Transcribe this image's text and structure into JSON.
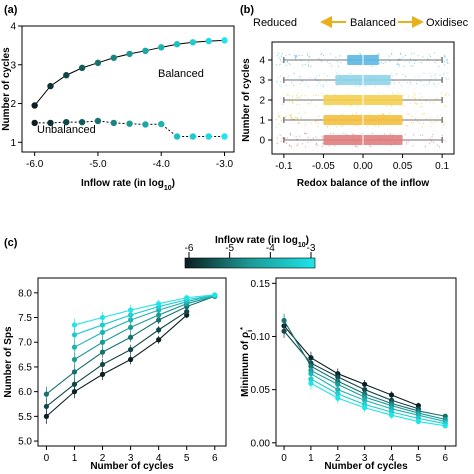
{
  "panel_labels": [
    "(a)",
    "(b)",
    "(c)"
  ],
  "colors": {
    "dark": "#0b1e22",
    "mid": "#1b9a96",
    "light": "#20e4e8",
    "arrow": "#e8b11c",
    "box_colors": [
      "#e07e7e",
      "#f5c040",
      "#f5cf50",
      "#8fd4ea",
      "#5bb8e2"
    ]
  },
  "chart_data": [
    {
      "type": "line",
      "panel": "(a)",
      "xlabel": "Inflow rate (in log10)",
      "ylabel": "Number of cycles",
      "xlim": [
        -6.2,
        -2.85
      ],
      "ylim": [
        0.75,
        4.0
      ],
      "xticks": [
        "-6.0",
        "-5.0",
        "-4.0",
        "-3.0"
      ],
      "yticks": [
        "1",
        "2",
        "3",
        "4"
      ],
      "series": [
        {
          "name": "Balanced",
          "x": [
            -6.0,
            -5.75,
            -5.5,
            -5.25,
            -5.0,
            -4.75,
            -4.5,
            -4.25,
            -4.0,
            -3.75,
            -3.5,
            -3.25,
            -3.0
          ],
          "values": [
            1.95,
            2.45,
            2.73,
            2.92,
            3.05,
            3.18,
            3.28,
            3.36,
            3.45,
            3.53,
            3.58,
            3.61,
            3.63
          ]
        },
        {
          "name": "Unbalanced",
          "x": [
            -6.0,
            -5.75,
            -5.5,
            -5.25,
            -5.0,
            -4.75,
            -4.5,
            -4.25,
            -4.0,
            -3.75,
            -3.5,
            -3.25,
            -3.0
          ],
          "values": [
            1.5,
            1.5,
            1.52,
            1.52,
            1.55,
            1.5,
            1.48,
            1.46,
            1.47,
            1.15,
            1.15,
            1.15,
            1.15
          ]
        }
      ],
      "annotations": [
        "Balanced",
        "Unbalanced"
      ]
    },
    {
      "type": "box",
      "panel": "(b)",
      "xlabel": "Redox balance of the inflow",
      "ylabel": "Number of cycles",
      "xlim": [
        -0.115,
        0.115
      ],
      "xticks": [
        "-0.1",
        "-0.05",
        "0.00",
        "0.05",
        "0.1"
      ],
      "categories": [
        "0",
        "1",
        "2",
        "3",
        "4"
      ],
      "boxes": [
        {
          "category": "0",
          "whisker_lo": -0.1,
          "q1": -0.05,
          "median": 0.0,
          "q3": 0.05,
          "whisker_hi": 0.1
        },
        {
          "category": "1",
          "whisker_lo": -0.1,
          "q1": -0.05,
          "median": 0.0,
          "q3": 0.05,
          "whisker_hi": 0.1
        },
        {
          "category": "2",
          "whisker_lo": -0.1,
          "q1": -0.05,
          "median": 0.0,
          "q3": 0.05,
          "whisker_hi": 0.1
        },
        {
          "category": "3",
          "whisker_lo": -0.1,
          "q1": -0.035,
          "median": 0.0,
          "q3": 0.035,
          "whisker_hi": 0.1
        },
        {
          "category": "4",
          "whisker_lo": -0.1,
          "q1": -0.02,
          "median": 0.0,
          "q3": 0.02,
          "whisker_hi": 0.1
        }
      ],
      "header": {
        "left": "Reduced",
        "center": "Balanced",
        "right": "Oxidisec"
      }
    },
    {
      "type": "line",
      "panel": "(c) left",
      "xlabel": "Number of cycles",
      "ylabel": "Number of Sps",
      "xlim": [
        -0.3,
        6.4
      ],
      "ylim": [
        4.9,
        8.3
      ],
      "xticks": [
        "0",
        "1",
        "2",
        "3",
        "4",
        "5",
        "6"
      ],
      "yticks": [
        "5.0",
        "5.5",
        "6.0",
        "6.5",
        "7.0",
        "7.5",
        "8.0"
      ],
      "series": [
        {
          "inflow_log10": -6.0,
          "x": [
            0,
            1,
            2,
            3,
            4,
            5
          ],
          "values": [
            5.5,
            6.0,
            6.35,
            6.65,
            7.05,
            7.55
          ]
        },
        {
          "inflow_log10": -5.5,
          "x": [
            0,
            1,
            2,
            3,
            4,
            5
          ],
          "values": [
            5.7,
            6.15,
            6.55,
            6.85,
            7.25,
            7.62
          ]
        },
        {
          "inflow_log10": -5.0,
          "x": [
            0,
            1,
            2,
            3,
            4,
            5,
            6
          ],
          "values": [
            5.95,
            6.4,
            6.8,
            7.1,
            7.45,
            7.72,
            7.93
          ]
        },
        {
          "inflow_log10": -4.5,
          "x": [
            1,
            2,
            3,
            4,
            5,
            6
          ],
          "values": [
            6.65,
            7.0,
            7.3,
            7.55,
            7.78,
            7.93
          ]
        },
        {
          "inflow_log10": -4.0,
          "x": [
            1,
            2,
            3,
            4,
            5,
            6
          ],
          "values": [
            6.9,
            7.2,
            7.45,
            7.65,
            7.82,
            7.95
          ]
        },
        {
          "inflow_log10": -3.5,
          "x": [
            1,
            2,
            3,
            4,
            5,
            6
          ],
          "values": [
            7.15,
            7.35,
            7.55,
            7.72,
            7.86,
            7.95
          ]
        },
        {
          "inflow_log10": -3.0,
          "x": [
            1,
            2,
            3,
            4,
            5,
            6
          ],
          "values": [
            7.35,
            7.5,
            7.65,
            7.78,
            7.9,
            7.96
          ]
        }
      ]
    },
    {
      "type": "line",
      "panel": "(c) right",
      "xlabel": "Number of cycles",
      "ylabel": "Minimum of ρi*",
      "xlim": [
        -0.3,
        6.4
      ],
      "ylim": [
        -0.003,
        0.155
      ],
      "xticks": [
        "0",
        "1",
        "2",
        "3",
        "4",
        "5",
        "6"
      ],
      "yticks": [
        "0.00",
        "0.05",
        "0.10",
        "0.15"
      ],
      "series": [
        {
          "inflow_log10": -6.0,
          "x": [
            0,
            1,
            2,
            3,
            4,
            5
          ],
          "values": [
            0.11,
            0.08,
            0.065,
            0.055,
            0.045,
            0.035
          ]
        },
        {
          "inflow_log10": -5.5,
          "x": [
            0,
            1,
            2,
            3,
            4,
            5
          ],
          "values": [
            0.105,
            0.075,
            0.062,
            0.05,
            0.04,
            0.032
          ]
        },
        {
          "inflow_log10": -5.0,
          "x": [
            0,
            1,
            2,
            3,
            4,
            5,
            6
          ],
          "values": [
            0.115,
            0.072,
            0.058,
            0.046,
            0.037,
            0.03,
            0.025
          ]
        },
        {
          "inflow_log10": -4.5,
          "x": [
            1,
            2,
            3,
            4,
            5,
            6
          ],
          "values": [
            0.068,
            0.055,
            0.043,
            0.035,
            0.028,
            0.022
          ]
        },
        {
          "inflow_log10": -4.0,
          "x": [
            1,
            2,
            3,
            4,
            5,
            6
          ],
          "values": [
            0.065,
            0.05,
            0.04,
            0.032,
            0.026,
            0.02
          ]
        },
        {
          "inflow_log10": -3.5,
          "x": [
            1,
            2,
            3,
            4,
            5,
            6
          ],
          "values": [
            0.06,
            0.046,
            0.036,
            0.029,
            0.023,
            0.018
          ]
        },
        {
          "inflow_log10": -3.0,
          "x": [
            1,
            2,
            3,
            4,
            5,
            6
          ],
          "values": [
            0.056,
            0.042,
            0.033,
            0.026,
            0.02,
            0.016
          ]
        }
      ]
    }
  ],
  "colorbar": {
    "label": "Inflow rate (in log",
    "label_sub": "10",
    "label_close": ")",
    "ticks": [
      "-6",
      "-5",
      "-4",
      "-3"
    ],
    "range": [
      -6,
      -3
    ]
  }
}
